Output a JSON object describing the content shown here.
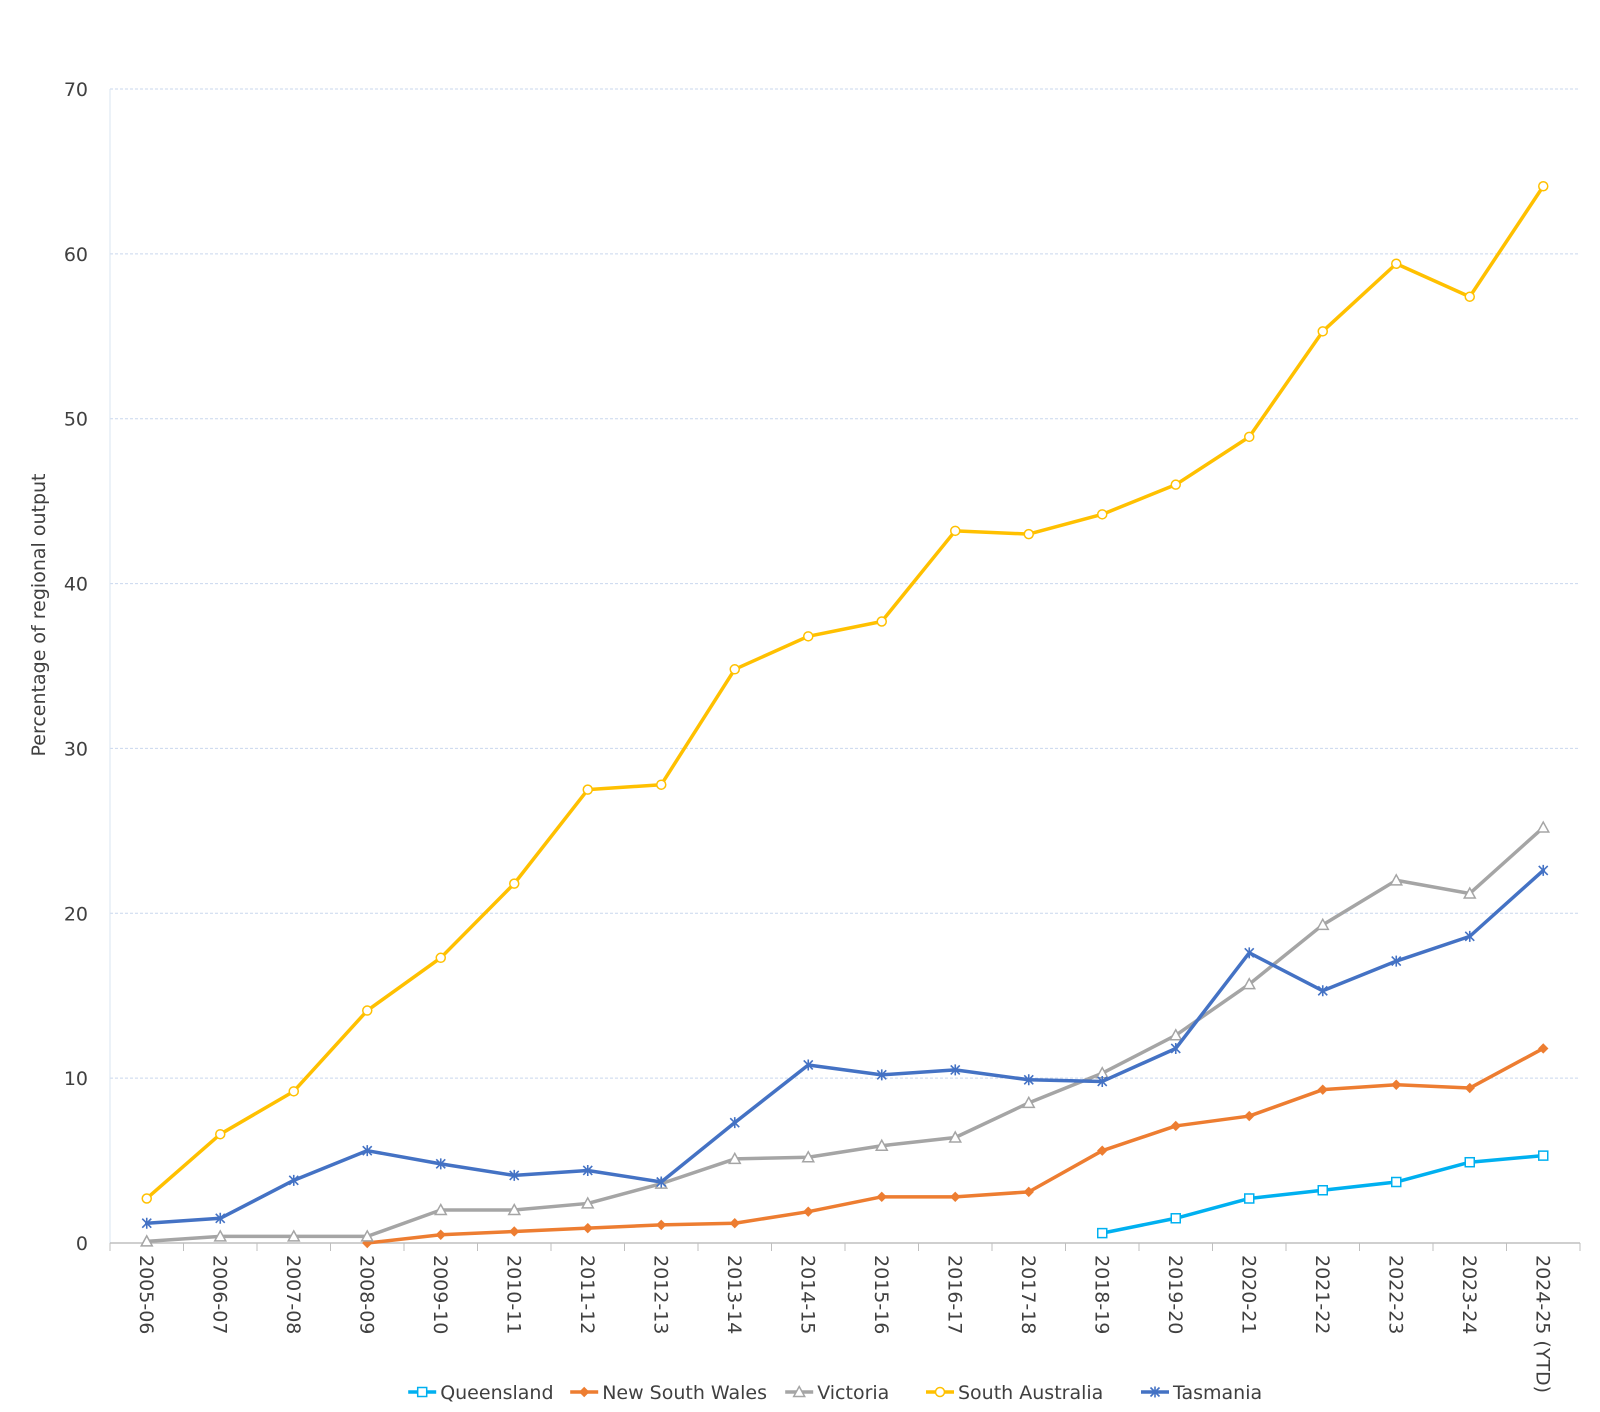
{
  "chart_data": {
    "type": "line",
    "title": "",
    "xlabel": "",
    "ylabel": "Percentage of regional output",
    "ylim": [
      0,
      70
    ],
    "yticks": [
      0,
      10,
      20,
      30,
      40,
      50,
      60,
      70
    ],
    "grid": true,
    "legend_position": "bottom",
    "categories": [
      "2005-06",
      "2006-07",
      "2007-08",
      "2008-09",
      "2009-10",
      "2010-11",
      "2011-12",
      "2012-13",
      "2013-14",
      "2014-15",
      "2015-16",
      "2016-17",
      "2017-18",
      "2018-19",
      "2019-20",
      "2020-21",
      "2021-22",
      "2022-23",
      "2023-24",
      "2024-25 (YTD)"
    ],
    "series": [
      {
        "name": "Queensland",
        "color": "#00b0f0",
        "marker": "square",
        "values": [
          null,
          null,
          null,
          null,
          null,
          null,
          null,
          null,
          null,
          null,
          null,
          null,
          null,
          0.6,
          1.5,
          2.7,
          3.2,
          3.7,
          4.9,
          5.3
        ]
      },
      {
        "name": "New South Wales",
        "color": "#ed7d31",
        "marker": "diamond",
        "values": [
          null,
          null,
          null,
          0.0,
          0.5,
          0.7,
          0.9,
          1.1,
          1.2,
          1.9,
          2.8,
          2.8,
          3.1,
          5.6,
          7.1,
          7.7,
          9.3,
          9.6,
          9.4,
          11.8
        ]
      },
      {
        "name": "Victoria",
        "color": "#a5a5a5",
        "marker": "triangle",
        "values": [
          0.1,
          0.4,
          0.4,
          0.4,
          2.0,
          2.0,
          2.4,
          3.6,
          5.1,
          5.2,
          5.9,
          6.4,
          8.5,
          10.3,
          12.6,
          15.7,
          19.3,
          22.0,
          21.2,
          25.2
        ]
      },
      {
        "name": "South Australia",
        "color": "#ffc000",
        "marker": "circle",
        "values": [
          2.7,
          6.6,
          9.2,
          14.1,
          17.3,
          21.8,
          27.5,
          27.8,
          34.8,
          36.8,
          37.7,
          43.2,
          43.0,
          44.2,
          46.0,
          48.9,
          55.3,
          59.4,
          57.4,
          64.1
        ]
      },
      {
        "name": "Tasmania",
        "color": "#4472c4",
        "marker": "star",
        "values": [
          1.2,
          1.5,
          3.8,
          5.6,
          4.8,
          4.1,
          4.4,
          3.7,
          7.3,
          10.8,
          10.2,
          10.5,
          9.9,
          9.8,
          11.8,
          17.6,
          15.3,
          17.1,
          18.6,
          22.6
        ]
      }
    ]
  }
}
